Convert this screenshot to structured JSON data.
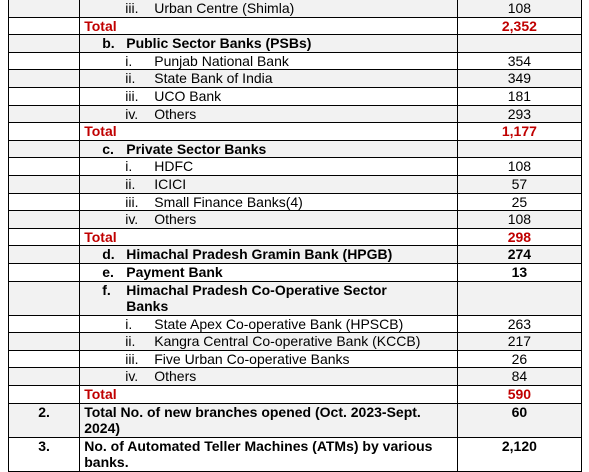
{
  "rows": [
    {
      "type": "item",
      "num": "iii.",
      "label": "Urban Centre (Shimla)",
      "value": "108",
      "shade": true
    },
    {
      "type": "total",
      "label": "Total",
      "value": "2,352",
      "shade": false
    },
    {
      "type": "heading",
      "num": "b.",
      "label": "Public Sector Banks (PSBs)",
      "value": "",
      "shade": true
    },
    {
      "type": "item",
      "num": "i.",
      "label": "Punjab National Bank",
      "value": "354",
      "shade": false
    },
    {
      "type": "item",
      "num": "ii.",
      "label": "State Bank of India",
      "value": "349",
      "shade": true
    },
    {
      "type": "item",
      "num": "iii.",
      "label": "UCO Bank",
      "value": "181",
      "shade": false
    },
    {
      "type": "item",
      "num": "iv.",
      "label": "Others",
      "value": "293",
      "shade": true
    },
    {
      "type": "total",
      "label": "Total",
      "value": "1,177",
      "shade": false
    },
    {
      "type": "heading",
      "num": "c.",
      "label": "Private Sector Banks",
      "value": "",
      "shade": true
    },
    {
      "type": "item",
      "num": "i.",
      "label": "HDFC",
      "value": "108",
      "shade": false
    },
    {
      "type": "item",
      "num": "ii.",
      "label": "ICICI",
      "value": "57",
      "shade": true
    },
    {
      "type": "item",
      "num": "iii.",
      "label": "Small Finance Banks(4)",
      "value": "25",
      "shade": false
    },
    {
      "type": "item",
      "num": "iv.",
      "label": "Others",
      "value": "108",
      "shade": true
    },
    {
      "type": "total",
      "label": "Total",
      "value": "298",
      "shade": false
    },
    {
      "type": "heading",
      "num": "d.",
      "label": "Himachal Pradesh Gramin Bank (HPGB)",
      "value": "274",
      "shade": true
    },
    {
      "type": "heading",
      "num": "e.",
      "label": "Payment Bank",
      "value": "13",
      "shade": false
    },
    {
      "type": "heading2",
      "num": "f.",
      "label": "Himachal Pradesh Co-Operative Sector Banks",
      "value": "",
      "shade": true
    },
    {
      "type": "item",
      "num": "i.",
      "label": "State Apex Co-operative Bank (HPSCB)",
      "value": "263",
      "shade": false
    },
    {
      "type": "item",
      "num": "ii.",
      "label": "Kangra Central Co-operative Bank (KCCB)",
      "value": "217",
      "shade": true
    },
    {
      "type": "item",
      "num": "iii.",
      "label": "Five  Urban Co-operative Banks",
      "value": "26",
      "shade": false
    },
    {
      "type": "item",
      "num": "iv.",
      "label": "Others",
      "value": "84",
      "shade": true
    },
    {
      "type": "total",
      "label": "Total",
      "value": "590",
      "shade": false
    },
    {
      "type": "main",
      "sno": "2.",
      "label": "Total No. of new branches opened (Oct. 2023-Sept. 2024)",
      "value": "60",
      "shade": true
    },
    {
      "type": "main",
      "sno": "3.",
      "label": "No. of Automated Teller Machines (ATMs) by various banks.",
      "value": "2,120",
      "shade": false
    }
  ]
}
